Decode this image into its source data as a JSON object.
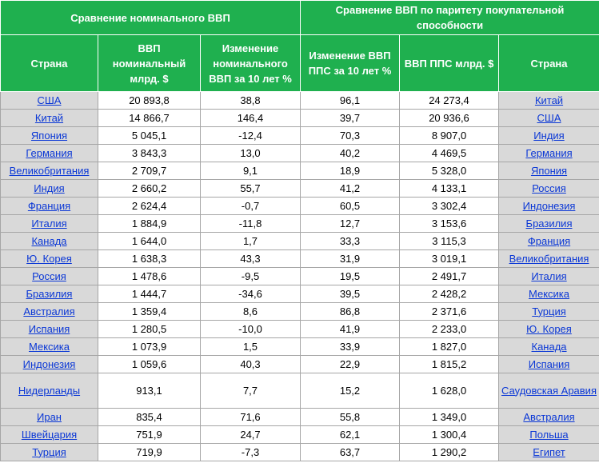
{
  "header": {
    "group_left": "Сравнение номинального ВВП",
    "group_right": "Сравнение ВВП по паритету покупательной способности",
    "columns": [
      "Страна",
      "ВВП номинальный млрд. $",
      "Изменение номинального ВВП за 10 лет %",
      "Изменение ВВП ППС за 10 лет %",
      "ВВП ППС млрд. $",
      "Страна"
    ]
  },
  "table": {
    "rows": [
      [
        "США",
        "20 893,8",
        "38,8",
        "96,1",
        "24 273,4",
        "Китай"
      ],
      [
        "Китай",
        "14 866,7",
        "146,4",
        "39,7",
        "20 936,6",
        "США"
      ],
      [
        "Япония",
        "5 045,1",
        "-12,4",
        "70,3",
        "8 907,0",
        "Индия"
      ],
      [
        "Германия",
        "3 843,3",
        "13,0",
        "40,2",
        "4 469,5",
        "Германия"
      ],
      [
        "Великобритания",
        "2 709,7",
        "9,1",
        "18,9",
        "5 328,0",
        "Япония"
      ],
      [
        "Индия",
        "2 660,2",
        "55,7",
        "41,2",
        "4 133,1",
        "Россия"
      ],
      [
        "Франция",
        "2 624,4",
        "-0,7",
        "60,5",
        "3 302,4",
        "Индонезия"
      ],
      [
        "Италия",
        "1 884,9",
        "-11,8",
        "12,7",
        "3 153,6",
        "Бразилия"
      ],
      [
        "Канада",
        "1 644,0",
        "1,7",
        "33,3",
        "3 115,3",
        "Франция"
      ],
      [
        "Ю. Корея",
        "1 638,3",
        "43,3",
        "31,9",
        "3 019,1",
        "Великобритания"
      ],
      [
        "Россия",
        "1 478,6",
        "-9,5",
        "19,5",
        "2 491,7",
        "Италия"
      ],
      [
        "Бразилия",
        "1 444,7",
        "-34,6",
        "39,5",
        "2 428,2",
        "Мексика"
      ],
      [
        "Австралия",
        "1 359,4",
        "8,6",
        "86,8",
        "2 371,6",
        "Турция"
      ],
      [
        "Испания",
        "1 280,5",
        "-10,0",
        "41,9",
        "2 233,0",
        "Ю. Корея"
      ],
      [
        "Мексика",
        "1 073,9",
        "1,5",
        "33,9",
        "1 827,0",
        "Канада"
      ],
      [
        "Индонезия",
        "1 059,6",
        "40,3",
        "22,9",
        "1 815,2",
        "Испания"
      ],
      [
        "Нидерланды",
        "913,1",
        "7,7",
        "15,2",
        "1 628,0",
        "Саудовская Аравия"
      ],
      [
        "Иран",
        "835,4",
        "71,6",
        "55,8",
        "1 349,0",
        "Австралия"
      ],
      [
        "Швейцария",
        "751,9",
        "24,7",
        "62,1",
        "1 300,4",
        "Польша"
      ],
      [
        "Турция",
        "719,9",
        "-7,3",
        "63,7",
        "1 290,2",
        "Египет"
      ]
    ]
  }
}
